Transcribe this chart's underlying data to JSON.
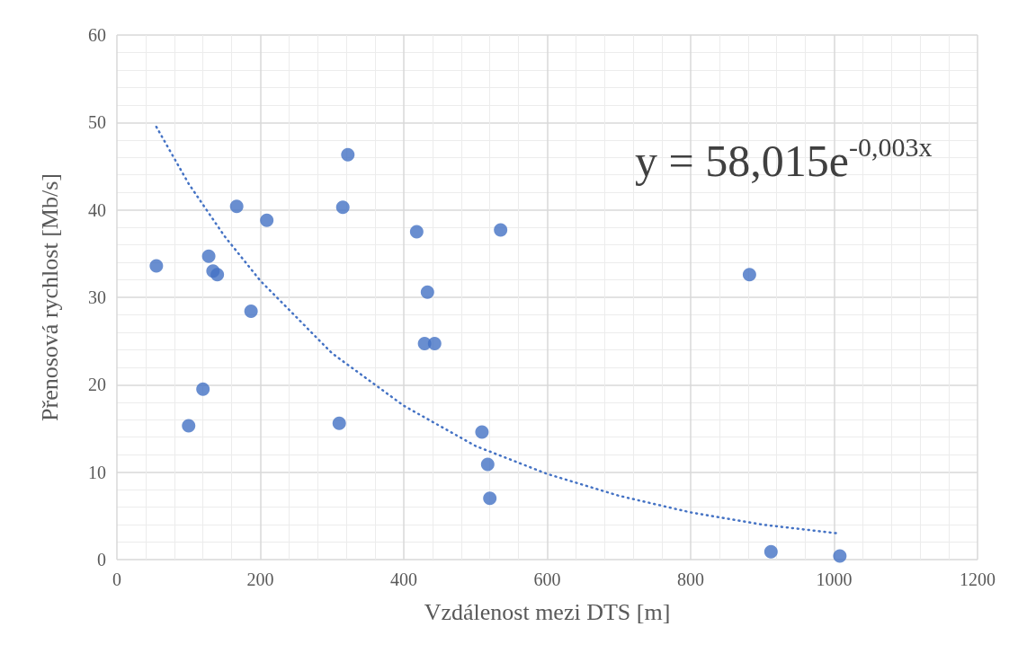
{
  "chart_data": {
    "type": "scatter",
    "xlabel": "Vzdálenost mezi DTS [m]",
    "ylabel": "Přenosová rychlost [Mb/s]",
    "annotations": [
      "y = 58,015e$^{-0,003x}$"
    ],
    "series": [
      {
        "color": "#4472c4",
        "marker": "circle",
        "x": [
          55,
          100,
          120,
          128,
          134,
          140,
          167,
          187,
          209,
          310,
          315,
          322,
          418,
          429,
          433,
          443,
          509,
          517,
          520,
          535,
          882,
          912,
          1008
        ],
        "values": [
          33.6,
          15.3,
          19.5,
          34.7,
          33.0,
          32.6,
          40.4,
          28.4,
          38.8,
          15.6,
          40.3,
          46.3,
          37.5,
          24.7,
          30.6,
          24.7,
          14.6,
          10.9,
          7.0,
          37.7,
          32.6,
          0.9,
          0.4
        ]
      },
      {
        "type": "line",
        "color": "#4472c4",
        "line_style": "dotted",
        "marker": "none",
        "x": [
          55,
          100,
          150,
          200,
          300,
          400,
          500,
          600,
          700,
          800,
          900,
          1005
        ],
        "values": [
          49.5,
          43,
          37,
          31.9,
          23.6,
          17.6,
          13,
          9.8,
          7.3,
          5.4,
          4.0,
          3.0
        ]
      }
    ],
    "xlim": [
      0,
      1200
    ],
    "xticks": [
      0,
      200,
      400,
      600,
      800,
      1000,
      1200
    ],
    "ylim": [
      0,
      60
    ],
    "yticks": [
      0,
      10,
      20,
      30,
      40,
      50,
      60
    ],
    "grid": true
  }
}
